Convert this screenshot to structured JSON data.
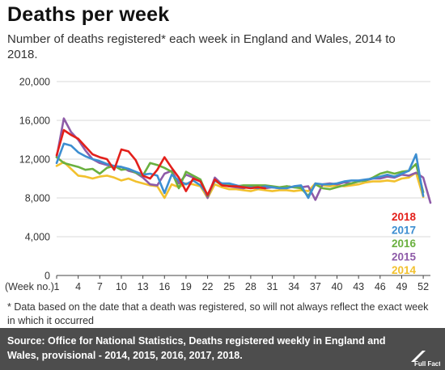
{
  "title": "Deaths per week",
  "subtitle": "Number of deaths registered* each week in England and Wales, 2014 to 2018.",
  "note": "* Data based on the date that a death was registered, so will not always reflect the exact week in which it occurred",
  "source": {
    "label": "Source:",
    "text": "Office for National Statistics, Deaths registered weekly in England and Wales, provisional - 2014, 2015, 2016, 2017, 2018."
  },
  "logo_text": "Full Fact",
  "chart_data": {
    "type": "line",
    "title": "Deaths per week",
    "xlabel": "(Week no.)",
    "ylabel": "",
    "xlim": [
      1,
      53
    ],
    "ylim": [
      0,
      20000
    ],
    "x_ticks": [
      1,
      4,
      7,
      10,
      13,
      16,
      19,
      22,
      25,
      28,
      31,
      34,
      37,
      40,
      43,
      46,
      49,
      52
    ],
    "y_ticks": [
      0,
      4000,
      8000,
      12000,
      16000,
      20000
    ],
    "y_tick_labels": [
      "0",
      "4,000",
      "8,000",
      "12,000",
      "16,000",
      "20,000"
    ],
    "grid": "horizontal",
    "legend": "right, inside",
    "series": [
      {
        "name": "2014",
        "color": "#f2c12e",
        "values": [
          11300,
          11700,
          11000,
          10300,
          10200,
          10000,
          10200,
          10300,
          10100,
          9800,
          10000,
          9700,
          9500,
          9300,
          9200,
          8000,
          9400,
          9100,
          9500,
          9400,
          9200,
          8000,
          9400,
          9100,
          8900,
          8900,
          8800,
          8700,
          8900,
          8800,
          8700,
          8800,
          8800,
          8700,
          8800,
          8700,
          9500,
          9300,
          9200,
          9300,
          9200,
          9300,
          9400,
          9600,
          9700,
          9700,
          9800,
          9700,
          10000,
          10100,
          10600,
          8100
        ]
      },
      {
        "name": "2015",
        "color": "#8e5ba8",
        "values": [
          12200,
          16200,
          14800,
          14000,
          12900,
          12000,
          11600,
          11400,
          11200,
          11200,
          10800,
          10600,
          10100,
          9400,
          9300,
          10500,
          10800,
          9500,
          10400,
          10100,
          9900,
          8000,
          10100,
          9400,
          9200,
          9100,
          9000,
          9200,
          9100,
          9000,
          9100,
          9000,
          9200,
          9100,
          9100,
          9200,
          7800,
          9400,
          9500,
          9400,
          9600,
          9500,
          9700,
          9800,
          10000,
          10000,
          10200,
          10100,
          10400,
          10300,
          10600,
          10100,
          7500
        ]
      },
      {
        "name": "2016",
        "color": "#6ab03f",
        "values": [
          12200,
          11600,
          11400,
          11200,
          10900,
          11000,
          10500,
          11100,
          11300,
          10900,
          11000,
          10600,
          10300,
          11600,
          11400,
          11100,
          10700,
          9000,
          10700,
          10300,
          9900,
          8200,
          9800,
          9300,
          9300,
          9200,
          9300,
          9300,
          9300,
          9300,
          9200,
          9100,
          9200,
          9100,
          9000,
          8200,
          9400,
          9000,
          8900,
          9100,
          9300,
          9500,
          9700,
          9800,
          10100,
          10500,
          10700,
          10500,
          10700,
          10800,
          11500,
          8600
        ]
      },
      {
        "name": "2017",
        "color": "#3d8ed1",
        "values": [
          11600,
          13600,
          13400,
          12700,
          12300,
          12000,
          11800,
          11500,
          11300,
          11200,
          11000,
          10700,
          10400,
          10500,
          10300,
          8500,
          10400,
          9800,
          9400,
          9800,
          9300,
          8300,
          9800,
          9500,
          9500,
          9300,
          9100,
          9100,
          9000,
          9200,
          9100,
          9000,
          9000,
          9200,
          9300,
          8000,
          9500,
          9400,
          9400,
          9500,
          9700,
          9800,
          9800,
          9900,
          10000,
          10200,
          10400,
          10200,
          10500,
          10800,
          12500,
          8200
        ]
      },
      {
        "name": "2018",
        "color": "#e3201b",
        "values": [
          12400,
          15000,
          14500,
          14100,
          13300,
          12500,
          12200,
          12000,
          10900,
          13000,
          12800,
          11900,
          10300,
          10000,
          10900,
          12200,
          11100,
          10100,
          8700,
          10000,
          9700,
          8300,
          9900,
          9300,
          9200,
          9200,
          9100,
          9000,
          9100,
          9000
        ]
      }
    ]
  }
}
